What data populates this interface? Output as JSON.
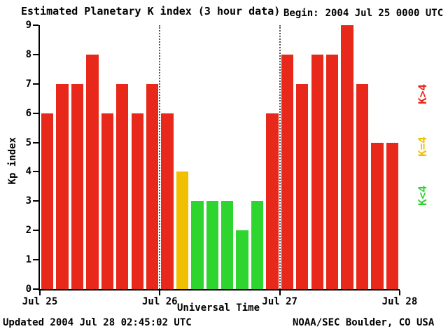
{
  "header": {
    "title": "Estimated Planetary K index (3 hour data)",
    "begin_label": "Begin:",
    "begin_value": "2004 Jul 25 0000 UTC"
  },
  "footer": {
    "updated": "Updated 2004 Jul 28 02:45:02 UTC",
    "source": "NOAA/SEC Boulder, CO USA"
  },
  "legend": [
    {
      "label": "K>4",
      "color": "#e8281a"
    },
    {
      "label": "K=4",
      "color": "#f0c000"
    },
    {
      "label": "K<4",
      "color": "#2ed52e"
    }
  ],
  "chart_data": {
    "type": "bar",
    "title": "Estimated Planetary K index (3 hour data)",
    "xlabel": "Universal Time",
    "ylabel": "Kp index",
    "ylim": [
      0,
      9
    ],
    "yticks": [
      0,
      1,
      2,
      3,
      4,
      5,
      6,
      7,
      8,
      9
    ],
    "xticklabels": [
      "Jul 25",
      "Jul 26",
      "Jul 27",
      "Jul 28"
    ],
    "interval_hours": 3,
    "values": [
      6,
      7,
      7,
      8,
      6,
      7,
      6,
      7,
      6,
      4,
      3,
      3,
      3,
      2,
      3,
      6,
      8,
      7,
      8,
      8,
      9,
      7,
      5,
      5
    ],
    "colors": {
      "gt4": "#e8281a",
      "eq4": "#f0c000",
      "lt4": "#2ed52e"
    },
    "day_boundary_lines": "dotted",
    "grid": false,
    "legend_position": "right"
  }
}
